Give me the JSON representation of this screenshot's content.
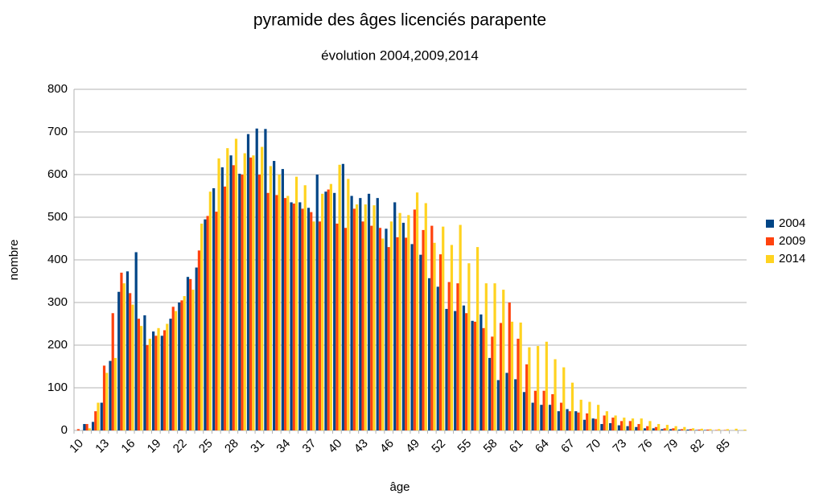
{
  "chart_data": {
    "type": "bar",
    "title": "pyramide des âges licenciés parapente",
    "subtitle": "évolution 2004,2009,2014",
    "x_label": "âge",
    "y_label": "nombre",
    "categories": [
      "10",
      null,
      null,
      "13",
      null,
      null,
      "16",
      null,
      null,
      "19",
      null,
      null,
      "22",
      null,
      null,
      "25",
      null,
      null,
      "28",
      null,
      null,
      "31",
      null,
      null,
      "34",
      null,
      null,
      "37",
      null,
      null,
      "40",
      null,
      null,
      "43",
      null,
      null,
      "46",
      null,
      null,
      "49",
      null,
      null,
      "52",
      null,
      null,
      "55",
      null,
      null,
      "58",
      null,
      null,
      "61",
      null,
      null,
      "64",
      null,
      null,
      "67",
      null,
      null,
      "70",
      null,
      null,
      "73",
      null,
      null,
      "76",
      null,
      null,
      "79",
      null,
      null,
      "82",
      null,
      null,
      "85",
      null,
      null
    ],
    "series": [
      {
        "name": "2004",
        "color": "#004586",
        "values": [
          0,
          15,
          20,
          65,
          163,
          325,
          373,
          418,
          270,
          232,
          222,
          262,
          300,
          360,
          382,
          495,
          568,
          617,
          645,
          602,
          695,
          708,
          707,
          632,
          613,
          535,
          535,
          522,
          600,
          560,
          557,
          625,
          550,
          545,
          555,
          545,
          473,
          535,
          487,
          437,
          412,
          357,
          337,
          285,
          280,
          293,
          257,
          272,
          170,
          118,
          135,
          120,
          90,
          65,
          60,
          60,
          45,
          50,
          45,
          25,
          28,
          15,
          17,
          12,
          10,
          8,
          5,
          5,
          3,
          3,
          2,
          2,
          1,
          1,
          0,
          0,
          0,
          0
        ]
      },
      {
        "name": "2009",
        "color": "#ff420e",
        "values": [
          3,
          15,
          45,
          152,
          275,
          370,
          322,
          262,
          200,
          222,
          235,
          290,
          305,
          355,
          422,
          503,
          513,
          572,
          622,
          600,
          640,
          600,
          557,
          552,
          545,
          532,
          520,
          512,
          490,
          565,
          485,
          475,
          520,
          490,
          480,
          475,
          430,
          453,
          452,
          518,
          470,
          480,
          413,
          348,
          345,
          275,
          255,
          240,
          220,
          252,
          300,
          215,
          155,
          93,
          93,
          85,
          65,
          45,
          42,
          40,
          27,
          35,
          30,
          22,
          22,
          15,
          10,
          8,
          5,
          5,
          3,
          3,
          2,
          2,
          1,
          1,
          0,
          0
        ]
      },
      {
        "name": "2014",
        "color": "#ffd320",
        "values": [
          0,
          5,
          65,
          135,
          170,
          345,
          295,
          245,
          215,
          240,
          250,
          280,
          315,
          330,
          485,
          560,
          638,
          662,
          684,
          650,
          645,
          665,
          620,
          600,
          550,
          595,
          575,
          490,
          555,
          578,
          623,
          590,
          530,
          530,
          528,
          450,
          490,
          510,
          505,
          558,
          533,
          440,
          478,
          435,
          482,
          392,
          430,
          345,
          345,
          330,
          255,
          253,
          195,
          198,
          208,
          167,
          148,
          112,
          72,
          67,
          60,
          45,
          35,
          30,
          28,
          28,
          22,
          15,
          13,
          10,
          8,
          5,
          4,
          3,
          3,
          3,
          4,
          2
        ]
      }
    ],
    "ylim": [
      0,
      800
    ],
    "yticks": [
      0,
      100,
      200,
      300,
      400,
      500,
      600,
      700,
      800
    ],
    "grid": true,
    "legend": "right"
  }
}
